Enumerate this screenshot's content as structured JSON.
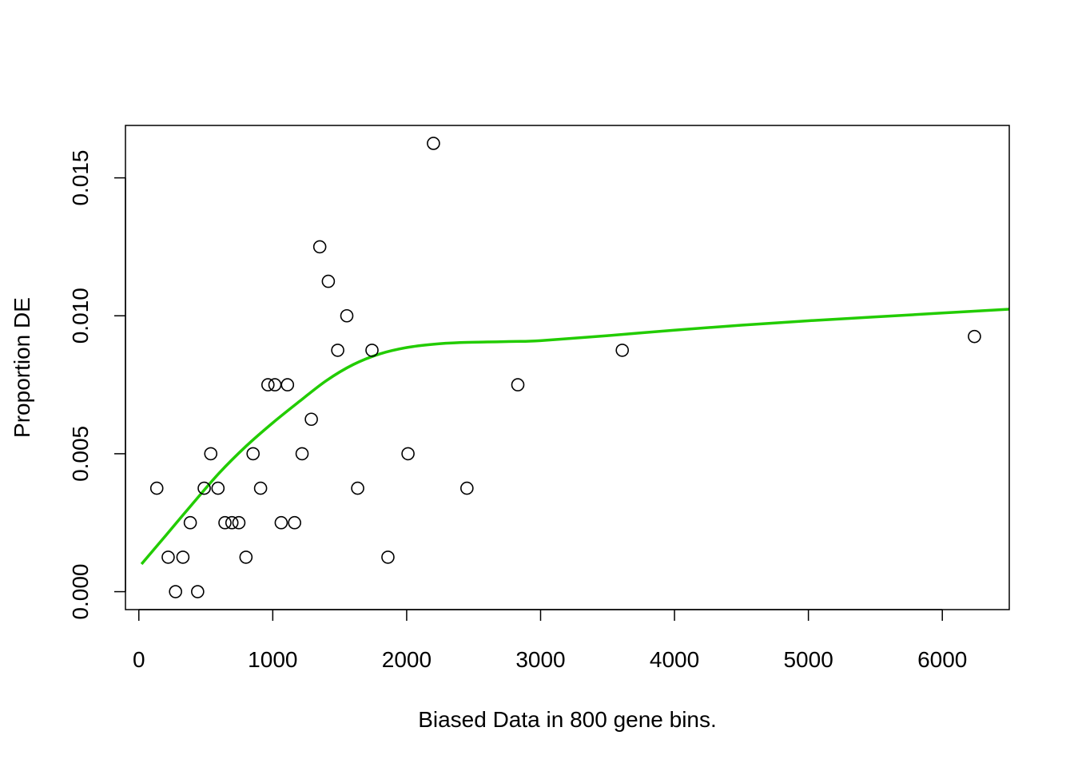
{
  "chart_data": {
    "type": "scatter",
    "title": "",
    "xlabel": "Biased Data in 800 gene bins.",
    "ylabel": "Proportion DE",
    "xlim": [
      -100,
      6500
    ],
    "ylim": [
      -0.00065,
      0.0169
    ],
    "x_ticks": [
      {
        "value": 0,
        "label": "0"
      },
      {
        "value": 1000,
        "label": "1000"
      },
      {
        "value": 2000,
        "label": "2000"
      },
      {
        "value": 3000,
        "label": "3000"
      },
      {
        "value": 4000,
        "label": "4000"
      },
      {
        "value": 5000,
        "label": "5000"
      },
      {
        "value": 6000,
        "label": "6000"
      }
    ],
    "y_ticks": [
      {
        "value": 0.0,
        "label": "0.000"
      },
      {
        "value": 0.005,
        "label": "0.005"
      },
      {
        "value": 0.01,
        "label": "0.010"
      },
      {
        "value": 0.015,
        "label": "0.015"
      }
    ],
    "grid": false,
    "points": {
      "x": [
        134,
        219,
        274,
        329,
        384,
        439,
        488,
        537,
        591,
        643,
        695,
        747,
        800,
        853,
        909,
        964,
        1016,
        1063,
        1110,
        1163,
        1219,
        1288,
        1351,
        1415,
        1485,
        1553,
        1634,
        1741,
        1860,
        2010,
        2200,
        2450,
        2830,
        3610,
        6240
      ],
      "y": [
        0.00375,
        0.00125,
        0.0,
        0.00125,
        0.0025,
        0.0,
        0.00375,
        0.005,
        0.00375,
        0.0025,
        0.0025,
        0.0025,
        0.00125,
        0.005,
        0.00375,
        0.0075,
        0.0075,
        0.0025,
        0.0075,
        0.0025,
        0.005,
        0.00625,
        0.0125,
        0.01125,
        0.00875,
        0.01,
        0.00375,
        0.00875,
        0.00125,
        0.005,
        0.01625,
        0.00375,
        0.0075,
        0.00875,
        0.00925
      ],
      "marker": "open-circle",
      "color": "#000000"
    },
    "fit_line": {
      "color": "#22cc00",
      "x": [
        20,
        200,
        400,
        600,
        800,
        1000,
        1200,
        1400,
        1600,
        1800,
        2000,
        2200,
        2400,
        2600,
        2800,
        3000,
        3500,
        4000,
        4500,
        5000,
        5500,
        6000,
        6500
      ],
      "y": [
        0.001,
        0.00203,
        0.00318,
        0.0043,
        0.00527,
        0.00612,
        0.0069,
        0.00765,
        0.00823,
        0.00862,
        0.00885,
        0.00897,
        0.00903,
        0.00905,
        0.00907,
        0.0091,
        0.00928,
        0.00948,
        0.00966,
        0.00982,
        0.00996,
        0.0101,
        0.01024
      ]
    }
  }
}
